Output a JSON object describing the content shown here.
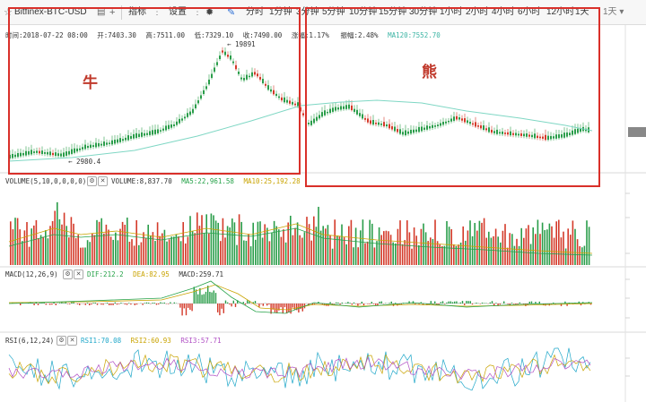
{
  "toolbar": {
    "symbol": "Bitfinex-BTC-USD",
    "indicators_label": "指标",
    "settings_label": "设置",
    "timeframes": [
      "分时",
      "1分钟",
      "3分钟",
      "5分钟",
      "10分钟",
      "15分钟",
      "30分钟",
      "1小时",
      "2小时",
      "4小时",
      "6小时",
      "12小时",
      "1天"
    ],
    "overflow": "1天"
  },
  "info_bar": {
    "time": "时间:2018-07-22 08:00",
    "open": "开:7403.30",
    "high": "高:7511.00",
    "low": "低:7329.10",
    "close": "收:7490.00",
    "change": "涨幅:1.17%",
    "amplitude": "振幅:2.48%",
    "ma": "MA120:7552.70"
  },
  "price_labels": {
    "high_mark": "19891",
    "low_mark": "2980.4"
  },
  "annotations": {
    "bull": "牛",
    "bear": "熊"
  },
  "volume_panel": {
    "title": "VOLUME(5,10,0,0,0,0)",
    "vol": "VOLUME:8,837.70",
    "ma5": "MA5:22,961.58",
    "ma10": "MA10:25,192.28"
  },
  "macd_panel": {
    "title": "MACD(12,26,9)",
    "dif": "DIF:212.2",
    "dea": "DEA:82.95",
    "macd": "MACD:259.71"
  },
  "rsi_panel": {
    "title": "RSI(6,12,24)",
    "rsi1": "RSI1:70.08",
    "rsi2": "RSI2:60.93",
    "rsi3": "RSI3:57.71"
  },
  "colors": {
    "up": "#2a9d4a",
    "down": "#d43a2a",
    "ma": "#7fd7c4",
    "annotation": "#d9302a"
  }
}
